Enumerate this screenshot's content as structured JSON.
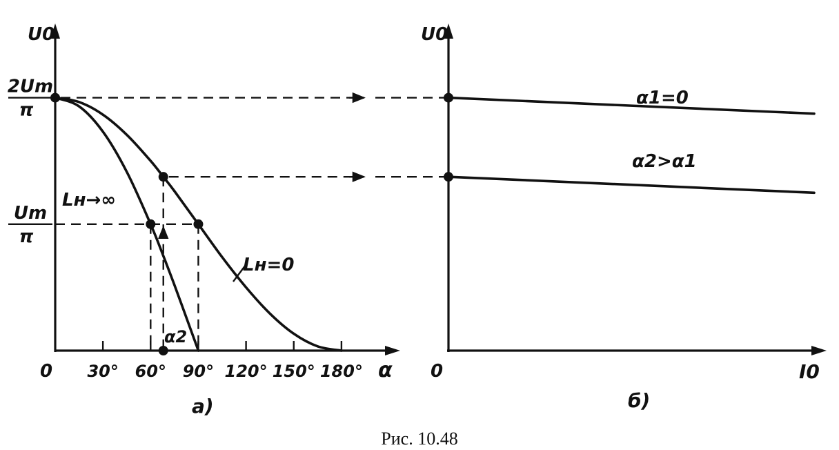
{
  "figure": {
    "caption": "Рис. 10.48"
  },
  "chart_data": [
    {
      "type": "line",
      "panel_label": "а)",
      "ylabel": "U0",
      "xlabel": "α",
      "y_tick_labels": [
        {
          "value": 0.6366,
          "num": "2Um",
          "den": "π"
        },
        {
          "value": 0.3183,
          "num": "Um",
          "den": "π"
        }
      ],
      "origin_label": "0",
      "x_ticks": [
        {
          "value": 30,
          "label": "30°"
        },
        {
          "value": 60,
          "label": "60°"
        },
        {
          "value": 90,
          "label": "90°"
        },
        {
          "value": 120,
          "label": "120°"
        },
        {
          "value": 150,
          "label": "150°"
        },
        {
          "value": 180,
          "label": "180°"
        }
      ],
      "xlim": [
        0,
        200
      ],
      "ylim": [
        0,
        0.82
      ],
      "series": [
        {
          "name": "Lн=0",
          "x": [
            0,
            15,
            30,
            45,
            60,
            68,
            75,
            90,
            105,
            120,
            135,
            150,
            165,
            180
          ],
          "y": [
            0.6366,
            0.6257,
            0.594,
            0.5433,
            0.4775,
            0.4375,
            0.4013,
            0.3183,
            0.2353,
            0.1592,
            0.0933,
            0.0426,
            0.0108,
            0.0
          ]
        },
        {
          "name": "Lн→∞",
          "x": [
            0,
            15,
            30,
            45,
            60,
            68,
            75,
            85,
            90
          ],
          "y": [
            0.6366,
            0.6149,
            0.5513,
            0.4501,
            0.3183,
            0.2385,
            0.1648,
            0.0555,
            0.0
          ]
        }
      ],
      "annotation": "α2",
      "alpha2": 68
    },
    {
      "type": "line",
      "panel_label": "б)",
      "ylabel": "U0",
      "xlabel": "I0",
      "origin_label": "0",
      "xlim": [
        0,
        1
      ],
      "ylim": [
        0,
        0.82
      ],
      "series": [
        {
          "name": "α1=0",
          "x": [
            0,
            1
          ],
          "y": [
            0.6366,
            0.5964
          ]
        },
        {
          "name": "α2>α1",
          "x": [
            0,
            1
          ],
          "y": [
            0.4375,
            0.3973
          ]
        }
      ]
    }
  ]
}
